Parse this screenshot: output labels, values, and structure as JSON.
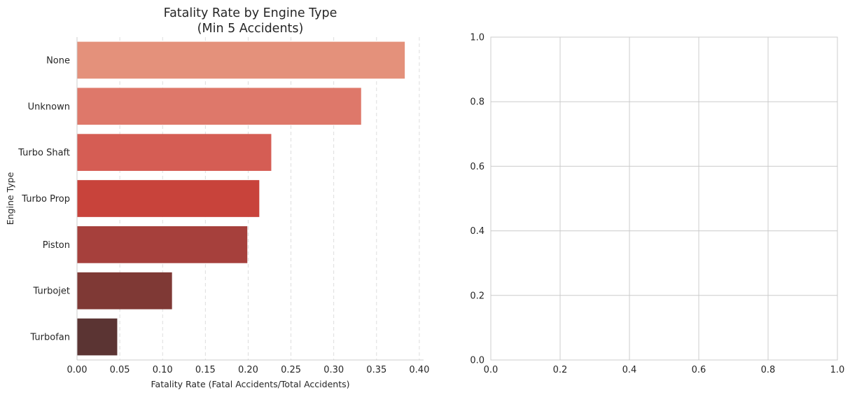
{
  "chart_data": [
    {
      "type": "bar",
      "orientation": "horizontal",
      "title_lines": [
        "Fatality Rate by Engine Type",
        "(Min 5 Accidents)"
      ],
      "xlabel": "Fatality Rate (Fatal Accidents/Total Accidents)",
      "ylabel": "Engine Type",
      "categories": [
        "None",
        "Unknown",
        "Turbo Shaft",
        "Turbo Prop",
        "Piston",
        "Turbojet",
        "Turbofan"
      ],
      "values": [
        0.383,
        0.332,
        0.227,
        0.213,
        0.199,
        0.111,
        0.047
      ],
      "colors": [
        "#e4917b",
        "#de786a",
        "#d55d54",
        "#c8433b",
        "#a6403c",
        "#7f3935",
        "#5b3433"
      ],
      "xlim": [
        0,
        0.405
      ],
      "xticks": [
        "0.00",
        "0.05",
        "0.10",
        "0.15",
        "0.20",
        "0.25",
        "0.30",
        "0.35",
        "0.40"
      ],
      "grid": "x-dashed"
    },
    {
      "type": "scatter",
      "empty": true,
      "xlim": [
        0,
        1
      ],
      "ylim": [
        0,
        1
      ],
      "xticks": [
        "0.0",
        "0.2",
        "0.4",
        "0.6",
        "0.8",
        "1.0"
      ],
      "yticks": [
        "0.0",
        "0.2",
        "0.4",
        "0.6",
        "0.8",
        "1.0"
      ],
      "grid": "solid"
    }
  ]
}
